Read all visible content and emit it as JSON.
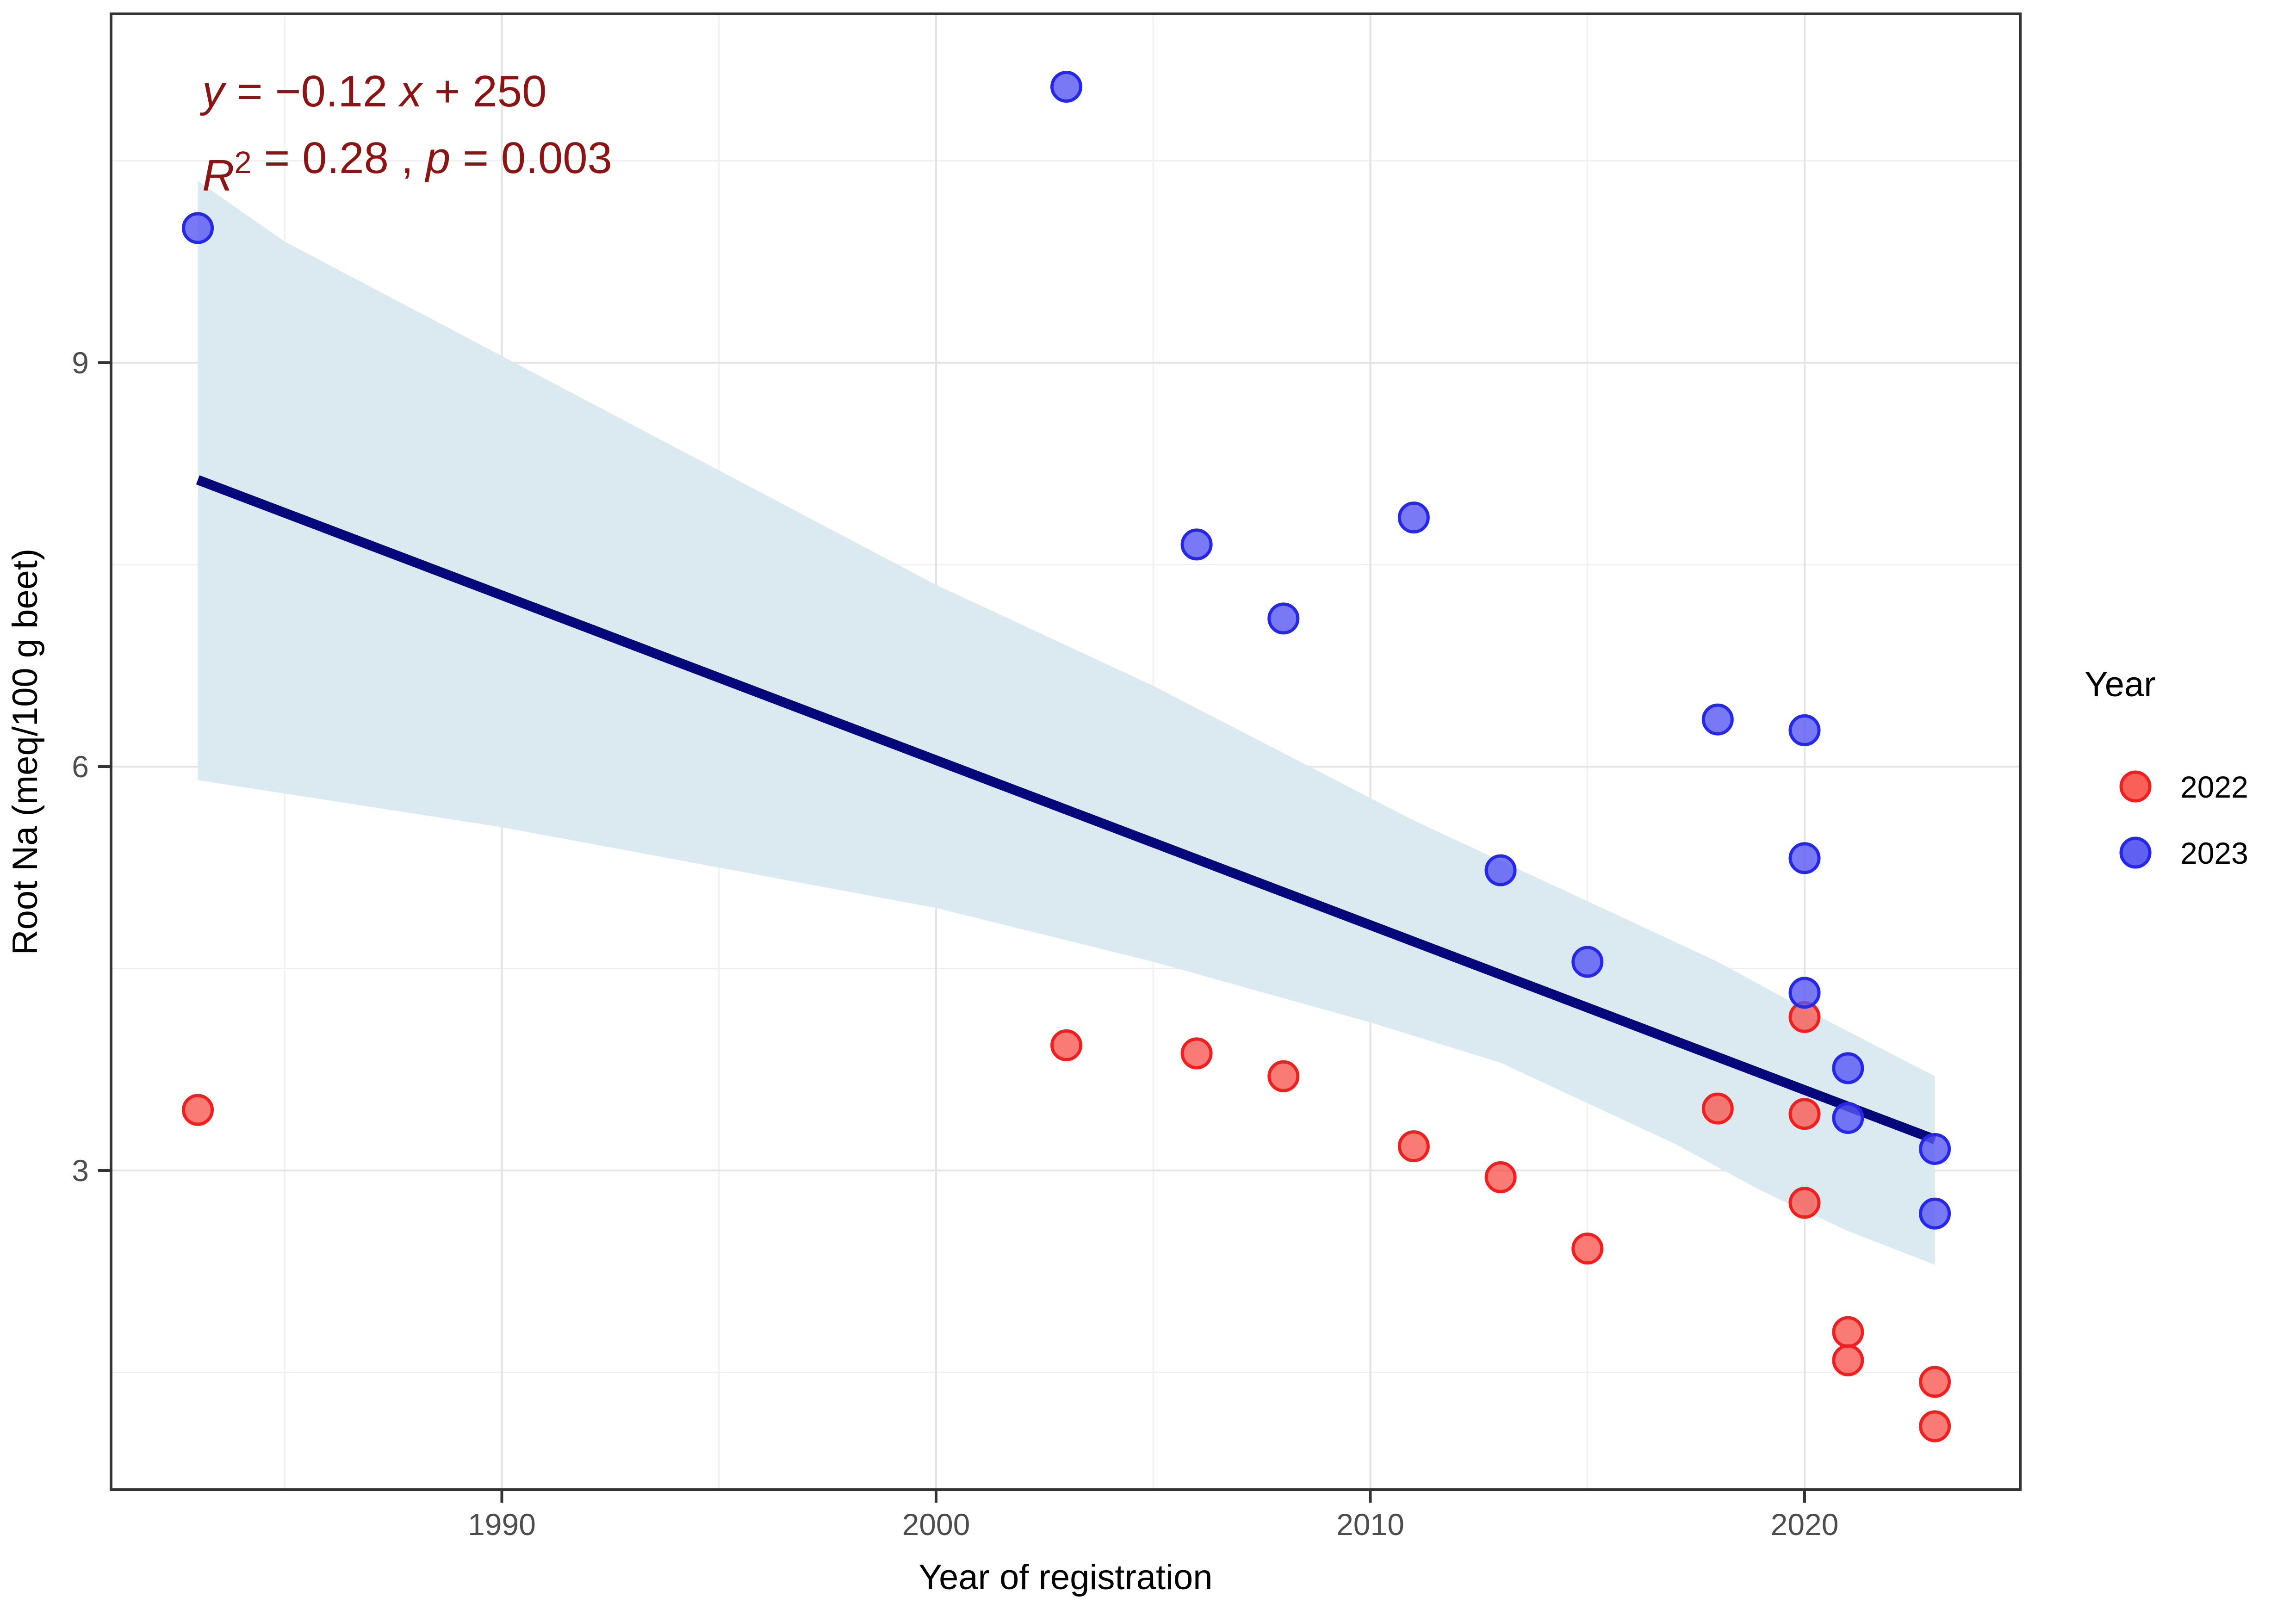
{
  "chart_data": {
    "type": "scatter",
    "title": "",
    "xlabel": "Year of registration",
    "ylabel": "Root Na (meq/100 g beet)",
    "xlim": [
      1981,
      2025
    ],
    "ylim": [
      0.63,
      11.59
    ],
    "x_ticks": [
      1990,
      2000,
      2010,
      2020
    ],
    "x_minor_ticks": [
      1985,
      1995,
      2005,
      2015
    ],
    "y_ticks": [
      3,
      6,
      9
    ],
    "y_minor_ticks": [
      1.5,
      4.5,
      7.5,
      10.5
    ],
    "grid": "on",
    "legend_position": "right",
    "annotation": {
      "color": "#8b1515",
      "line1_parts": [
        {
          "t": "y",
          "italic": true
        },
        {
          "t": " = −0.12 ",
          "italic": false
        },
        {
          "t": "x",
          "italic": true
        },
        {
          "t": " + 250",
          "italic": false
        }
      ],
      "line2_parts": [
        {
          "t": "R",
          "italic": true
        },
        {
          "t": "2",
          "italic": false,
          "sup": true
        },
        {
          "t": " = 0.28 , ",
          "italic": false
        },
        {
          "t": "p",
          "italic": true
        },
        {
          "t": " = 0.003",
          "italic": false
        }
      ]
    },
    "legend": {
      "title": "Year",
      "entries": [
        {
          "label": "2022",
          "fill": "#f86058",
          "stroke": "#ee2020"
        },
        {
          "label": "2023",
          "fill": "#6060f2",
          "stroke": "#2727e8"
        }
      ]
    },
    "series": [
      {
        "name": "2022",
        "fill": "rgba(248,86,78,0.78)",
        "stroke": "#ee2020",
        "points": [
          [
            1983,
            3.45
          ],
          [
            2003,
            3.93
          ],
          [
            2006,
            3.87
          ],
          [
            2008,
            3.7
          ],
          [
            2011,
            3.18
          ],
          [
            2013,
            2.95
          ],
          [
            2015,
            2.42
          ],
          [
            2018,
            3.46
          ],
          [
            2020,
            4.14
          ],
          [
            2020,
            3.42
          ],
          [
            2020,
            2.76
          ],
          [
            2021,
            1.8
          ],
          [
            2021,
            1.59
          ],
          [
            2023,
            1.43
          ],
          [
            2023,
            1.1
          ]
        ]
      },
      {
        "name": "2023",
        "fill": "rgba(88,88,244,0.80)",
        "stroke": "#2727e8",
        "points": [
          [
            1983,
            10.0
          ],
          [
            2003,
            11.05
          ],
          [
            2006,
            7.65
          ],
          [
            2008,
            7.1
          ],
          [
            2011,
            7.85
          ],
          [
            2013,
            5.23
          ],
          [
            2015,
            4.55
          ],
          [
            2018,
            6.35
          ],
          [
            2020,
            6.27
          ],
          [
            2020,
            5.32
          ],
          [
            2020,
            4.32
          ],
          [
            2021,
            3.76
          ],
          [
            2021,
            3.39
          ],
          [
            2023,
            3.16
          ],
          [
            2023,
            2.68
          ]
        ]
      }
    ],
    "regression_line": {
      "x1": 1983,
      "y1": 8.13,
      "x2": 2023,
      "y2": 3.23,
      "color": "#07077c"
    },
    "confidence_band": {
      "color": "#dbe9f0",
      "upper": [
        [
          1983,
          10.35
        ],
        [
          1985,
          9.9
        ],
        [
          1990,
          9.05
        ],
        [
          1995,
          8.2
        ],
        [
          2000,
          7.35
        ],
        [
          2005,
          6.6
        ],
        [
          2008,
          6.1
        ],
        [
          2011,
          5.6
        ],
        [
          2013,
          5.3
        ],
        [
          2015,
          5.0
        ],
        [
          2018,
          4.55
        ],
        [
          2020,
          4.2
        ],
        [
          2023,
          3.7
        ]
      ],
      "lower": [
        [
          1983,
          5.9
        ],
        [
          1990,
          5.55
        ],
        [
          2000,
          4.95
        ],
        [
          2005,
          4.55
        ],
        [
          2010,
          4.1
        ],
        [
          2013,
          3.8
        ],
        [
          2015,
          3.5
        ],
        [
          2017,
          3.2
        ],
        [
          2019,
          2.85
        ],
        [
          2021,
          2.55
        ],
        [
          2023,
          2.3
        ]
      ]
    },
    "style": {
      "panel_border": "#333333",
      "grid_major": "#e3e3e3",
      "grid_minor": "#f0f0f0",
      "tick_color": "#333333",
      "tick_label_color": "#4d4d4d",
      "axis_title_color": "#000000",
      "legend_text_color": "#000000"
    }
  }
}
